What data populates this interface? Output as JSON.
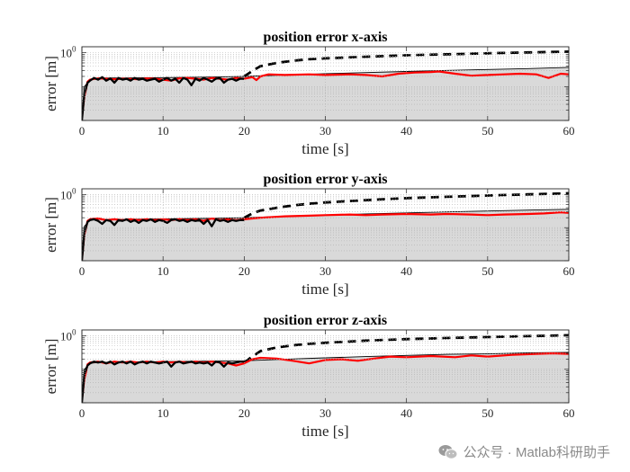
{
  "colors": {
    "fill": "#d9d9d9",
    "actual": "#ff0000",
    "bound": "#000000",
    "grid": "#b0b0b0",
    "axes": "#262626"
  },
  "watermark": {
    "text": "公众号 · Matlab科研助手"
  },
  "chart_data": [
    {
      "type": "line",
      "title": "position error x-axis",
      "xlabel": "time [s]",
      "ylabel": "error [m]",
      "xlim": [
        0,
        60
      ],
      "ylim": [
        0.01,
        1.5
      ],
      "y_scale": "log",
      "x_ticks": [
        0,
        10,
        20,
        30,
        40,
        50,
        60
      ],
      "y_ticks": [
        {
          "value": 1,
          "label": "10",
          "exp": "0"
        }
      ],
      "grid": "dotted",
      "series": [
        {
          "style": "filled-gray-area",
          "x": [
            0,
            0.3,
            1,
            2,
            5,
            10,
            15,
            20,
            25,
            30,
            35,
            40,
            45,
            50,
            55,
            60
          ],
          "y": [
            0.01,
            0.1,
            0.16,
            0.18,
            0.18,
            0.185,
            0.19,
            0.2,
            0.22,
            0.24,
            0.26,
            0.28,
            0.3,
            0.32,
            0.34,
            0.37
          ]
        },
        {
          "style": "black-thin-line",
          "x": [
            0,
            0.3,
            1,
            2,
            5,
            10,
            15,
            20,
            25,
            30,
            35,
            40,
            45,
            50,
            55,
            60
          ],
          "y": [
            0.01,
            0.1,
            0.16,
            0.18,
            0.18,
            0.185,
            0.19,
            0.2,
            0.22,
            0.24,
            0.26,
            0.28,
            0.3,
            0.32,
            0.34,
            0.37
          ]
        },
        {
          "style": "black-dashed",
          "x": [
            20,
            21,
            22,
            24,
            26,
            28,
            30,
            35,
            40,
            45,
            50,
            55,
            60
          ],
          "y": [
            0.2,
            0.29,
            0.4,
            0.5,
            0.58,
            0.64,
            0.68,
            0.76,
            0.84,
            0.9,
            0.96,
            1.02,
            1.08
          ]
        },
        {
          "style": "red-line",
          "x": [
            0,
            0.3,
            0.7,
            1,
            2,
            3,
            4,
            5,
            6,
            7,
            8,
            9,
            10,
            11,
            12,
            13,
            14,
            15,
            16,
            17,
            18,
            19,
            20,
            21,
            21.5,
            22,
            23,
            25,
            28,
            30,
            33,
            35,
            37,
            39,
            41,
            43,
            44,
            46,
            48,
            50,
            52,
            54,
            56,
            57.5,
            59,
            60
          ],
          "y": [
            0.012,
            0.05,
            0.14,
            0.16,
            0.175,
            0.17,
            0.165,
            0.17,
            0.168,
            0.165,
            0.175,
            0.17,
            0.16,
            0.15,
            0.175,
            0.18,
            0.17,
            0.16,
            0.18,
            0.17,
            0.16,
            0.18,
            0.17,
            0.19,
            0.155,
            0.2,
            0.23,
            0.22,
            0.23,
            0.22,
            0.23,
            0.22,
            0.2,
            0.24,
            0.26,
            0.27,
            0.28,
            0.24,
            0.21,
            0.22,
            0.23,
            0.24,
            0.23,
            0.18,
            0.24,
            0.23
          ]
        },
        {
          "style": "black-noisy",
          "x": [
            0,
            0.3,
            0.7,
            1,
            1.5,
            2,
            2.5,
            3,
            3.5,
            4,
            4.5,
            5,
            5.5,
            6,
            6.5,
            7,
            7.5,
            8,
            8.5,
            9,
            9.5,
            10,
            10.5,
            11,
            11.5,
            12,
            12.5,
            13,
            13.5,
            14,
            14.5,
            15,
            15.5,
            16,
            16.5,
            17,
            17.5,
            18,
            18.5,
            19,
            19.5,
            20
          ],
          "y": [
            0.01,
            0.06,
            0.13,
            0.15,
            0.18,
            0.16,
            0.19,
            0.15,
            0.175,
            0.13,
            0.18,
            0.16,
            0.17,
            0.15,
            0.18,
            0.16,
            0.17,
            0.15,
            0.16,
            0.17,
            0.14,
            0.16,
            0.18,
            0.15,
            0.17,
            0.13,
            0.18,
            0.16,
            0.11,
            0.17,
            0.15,
            0.18,
            0.16,
            0.14,
            0.17,
            0.18,
            0.13,
            0.16,
            0.17,
            0.15,
            0.17,
            0.17
          ]
        }
      ]
    },
    {
      "type": "line",
      "title": "position error y-axis",
      "xlabel": "time [s]",
      "ylabel": "error [m]",
      "xlim": [
        0,
        60
      ],
      "ylim": [
        0.01,
        1.5
      ],
      "y_scale": "log",
      "x_ticks": [
        0,
        10,
        20,
        30,
        40,
        50,
        60
      ],
      "y_ticks": [
        {
          "value": 1,
          "label": "10",
          "exp": "0"
        }
      ],
      "grid": "dotted",
      "series": [
        {
          "style": "filled-gray-area",
          "x": [
            0,
            0.3,
            1,
            2,
            5,
            10,
            15,
            20,
            25,
            30,
            35,
            40,
            45,
            50,
            55,
            60
          ],
          "y": [
            0.01,
            0.11,
            0.17,
            0.18,
            0.18,
            0.185,
            0.19,
            0.2,
            0.22,
            0.24,
            0.26,
            0.28,
            0.3,
            0.32,
            0.34,
            0.36
          ]
        },
        {
          "style": "black-thin-line",
          "x": [
            0,
            0.3,
            1,
            2,
            5,
            10,
            15,
            20,
            25,
            30,
            35,
            40,
            45,
            50,
            55,
            60
          ],
          "y": [
            0.01,
            0.11,
            0.17,
            0.18,
            0.18,
            0.185,
            0.19,
            0.2,
            0.22,
            0.24,
            0.26,
            0.28,
            0.3,
            0.32,
            0.34,
            0.36
          ]
        },
        {
          "style": "black-dashed",
          "x": [
            20,
            21,
            22,
            24,
            26,
            28,
            30,
            35,
            40,
            45,
            50,
            55,
            60
          ],
          "y": [
            0.2,
            0.27,
            0.33,
            0.4,
            0.47,
            0.53,
            0.58,
            0.68,
            0.78,
            0.86,
            0.94,
            1.02,
            1.1
          ]
        },
        {
          "style": "red-line",
          "x": [
            0,
            0.3,
            0.7,
            1,
            2,
            3,
            4,
            5,
            6,
            7,
            8,
            9,
            10,
            11,
            12,
            13,
            14,
            15,
            16,
            17,
            18,
            19,
            20,
            22,
            25,
            28,
            30,
            33,
            35,
            37,
            40,
            43,
            45,
            48,
            50,
            52,
            55,
            57,
            59,
            60
          ],
          "y": [
            0.011,
            0.06,
            0.16,
            0.18,
            0.19,
            0.17,
            0.18,
            0.17,
            0.18,
            0.17,
            0.18,
            0.17,
            0.18,
            0.17,
            0.18,
            0.17,
            0.18,
            0.16,
            0.19,
            0.17,
            0.18,
            0.17,
            0.18,
            0.2,
            0.22,
            0.23,
            0.24,
            0.25,
            0.24,
            0.25,
            0.26,
            0.25,
            0.26,
            0.25,
            0.24,
            0.25,
            0.26,
            0.27,
            0.29,
            0.28
          ]
        },
        {
          "style": "black-noisy",
          "x": [
            0,
            0.3,
            0.7,
            1,
            1.5,
            2,
            2.5,
            3,
            3.5,
            4,
            4.5,
            5,
            5.5,
            6,
            6.5,
            7,
            7.5,
            8,
            8.5,
            9,
            9.5,
            10,
            10.5,
            11,
            11.5,
            12,
            12.5,
            13,
            13.5,
            14,
            14.5,
            15,
            15.5,
            16,
            16.5,
            17,
            17.5,
            18,
            18.5,
            19,
            19.5,
            20
          ],
          "y": [
            0.01,
            0.07,
            0.15,
            0.17,
            0.18,
            0.16,
            0.13,
            0.17,
            0.16,
            0.12,
            0.17,
            0.16,
            0.18,
            0.15,
            0.17,
            0.14,
            0.17,
            0.16,
            0.18,
            0.15,
            0.17,
            0.16,
            0.14,
            0.17,
            0.18,
            0.16,
            0.17,
            0.15,
            0.17,
            0.16,
            0.17,
            0.13,
            0.17,
            0.11,
            0.18,
            0.16,
            0.17,
            0.15,
            0.17,
            0.16,
            0.17,
            0.17
          ]
        }
      ]
    },
    {
      "type": "line",
      "title": "position error z-axis",
      "xlabel": "time [s]",
      "ylabel": "error [m]",
      "xlim": [
        0,
        60
      ],
      "ylim": [
        0.01,
        1.5
      ],
      "y_scale": "log",
      "x_ticks": [
        0,
        10,
        20,
        30,
        40,
        50,
        60
      ],
      "y_ticks": [
        {
          "value": 1,
          "label": "10",
          "exp": "0"
        }
      ],
      "grid": "dotted",
      "series": [
        {
          "style": "filled-gray-area",
          "x": [
            0,
            0.3,
            1,
            2,
            5,
            10,
            15,
            20,
            25,
            30,
            35,
            40,
            45,
            50,
            55,
            60
          ],
          "y": [
            0.01,
            0.1,
            0.15,
            0.16,
            0.165,
            0.17,
            0.175,
            0.18,
            0.2,
            0.22,
            0.24,
            0.26,
            0.28,
            0.29,
            0.31,
            0.32
          ]
        },
        {
          "style": "black-thin-line",
          "x": [
            0,
            0.3,
            1,
            2,
            5,
            10,
            15,
            20,
            25,
            30,
            35,
            40,
            45,
            50,
            55,
            60
          ],
          "y": [
            0.01,
            0.1,
            0.15,
            0.16,
            0.165,
            0.17,
            0.175,
            0.18,
            0.2,
            0.22,
            0.24,
            0.26,
            0.28,
            0.29,
            0.31,
            0.32
          ]
        },
        {
          "style": "black-dashed",
          "x": [
            20,
            21,
            22,
            24,
            26,
            28,
            30,
            35,
            40,
            45,
            50,
            55,
            60
          ],
          "y": [
            0.16,
            0.24,
            0.35,
            0.45,
            0.52,
            0.58,
            0.62,
            0.72,
            0.8,
            0.86,
            0.92,
            0.98,
            1.04
          ]
        },
        {
          "style": "red-line",
          "x": [
            0,
            0.3,
            0.7,
            1,
            2,
            3,
            4,
            5,
            6,
            7,
            8,
            9,
            10,
            11,
            12,
            13,
            14,
            15,
            16,
            17,
            18,
            19,
            20,
            21,
            22,
            24,
            26,
            28,
            30,
            32,
            34,
            36,
            38,
            40,
            43,
            46,
            48,
            50,
            53,
            56,
            58,
            60
          ],
          "y": [
            0.012,
            0.05,
            0.14,
            0.16,
            0.17,
            0.15,
            0.17,
            0.16,
            0.17,
            0.16,
            0.17,
            0.16,
            0.17,
            0.16,
            0.17,
            0.16,
            0.17,
            0.16,
            0.17,
            0.16,
            0.15,
            0.13,
            0.15,
            0.2,
            0.22,
            0.21,
            0.18,
            0.15,
            0.19,
            0.2,
            0.18,
            0.21,
            0.24,
            0.23,
            0.25,
            0.23,
            0.26,
            0.24,
            0.27,
            0.29,
            0.3,
            0.29
          ]
        },
        {
          "style": "black-noisy",
          "x": [
            0,
            0.3,
            0.7,
            1,
            1.5,
            2,
            2.5,
            3,
            3.5,
            4,
            4.5,
            5,
            5.5,
            6,
            6.5,
            7,
            7.5,
            8,
            8.5,
            9,
            9.5,
            10,
            10.5,
            11,
            11.5,
            12,
            12.5,
            13,
            13.5,
            14,
            14.5,
            15,
            15.5,
            16,
            16.5,
            17,
            17.5,
            18,
            18.5,
            19,
            19.5,
            20
          ],
          "y": [
            0.01,
            0.07,
            0.13,
            0.15,
            0.17,
            0.16,
            0.17,
            0.15,
            0.17,
            0.14,
            0.16,
            0.17,
            0.15,
            0.17,
            0.14,
            0.16,
            0.17,
            0.15,
            0.17,
            0.16,
            0.15,
            0.16,
            0.17,
            0.12,
            0.16,
            0.17,
            0.15,
            0.16,
            0.17,
            0.15,
            0.16,
            0.15,
            0.16,
            0.13,
            0.17,
            0.16,
            0.12,
            0.16,
            0.15,
            0.16,
            0.17,
            0.17
          ]
        }
      ]
    }
  ]
}
